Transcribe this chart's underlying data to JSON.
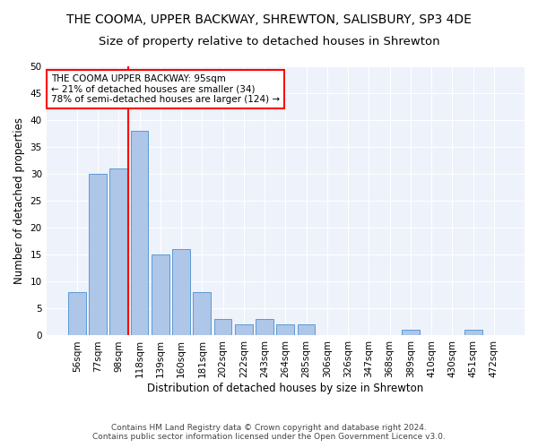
{
  "title": "THE COOMA, UPPER BACKWAY, SHREWTON, SALISBURY, SP3 4DE",
  "subtitle": "Size of property relative to detached houses in Shrewton",
  "xlabel": "Distribution of detached houses by size in Shrewton",
  "ylabel": "Number of detached properties",
  "footnote1": "Contains HM Land Registry data © Crown copyright and database right 2024.",
  "footnote2": "Contains public sector information licensed under the Open Government Licence v3.0.",
  "bar_labels": [
    "56sqm",
    "77sqm",
    "98sqm",
    "118sqm",
    "139sqm",
    "160sqm",
    "181sqm",
    "202sqm",
    "222sqm",
    "243sqm",
    "264sqm",
    "285sqm",
    "306sqm",
    "326sqm",
    "347sqm",
    "368sqm",
    "389sqm",
    "410sqm",
    "430sqm",
    "451sqm",
    "472sqm"
  ],
  "bar_values": [
    8,
    30,
    31,
    38,
    15,
    16,
    8,
    3,
    2,
    3,
    2,
    2,
    0,
    0,
    0,
    0,
    1,
    0,
    0,
    1,
    0
  ],
  "bar_color": "#aec6e8",
  "bar_edge_color": "#5b9bd5",
  "bar_width": 0.85,
  "ylim": [
    0,
    50
  ],
  "yticks": [
    0,
    5,
    10,
    15,
    20,
    25,
    30,
    35,
    40,
    45,
    50
  ],
  "vline_x": 2.48,
  "annotation_title": "THE COOMA UPPER BACKWAY: 95sqm",
  "annotation_line1": "← 21% of detached houses are smaller (34)",
  "annotation_line2": "78% of semi-detached houses are larger (124) →",
  "annotation_box_color": "white",
  "annotation_box_edge_color": "red",
  "vline_color": "red",
  "title_fontsize": 10,
  "subtitle_fontsize": 9.5,
  "axis_label_fontsize": 8.5,
  "tick_fontsize": 7.5,
  "annotation_fontsize": 7.5,
  "footnote_fontsize": 6.5,
  "bg_color": "#eef2fa"
}
